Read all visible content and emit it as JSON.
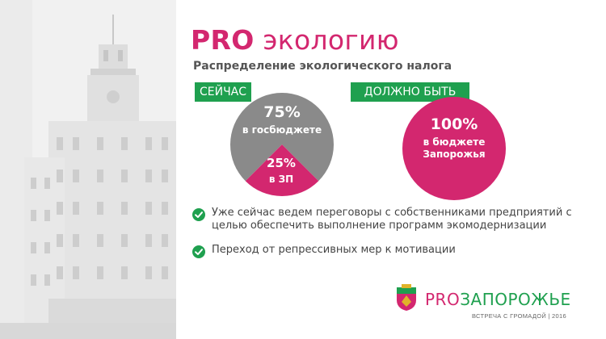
{
  "title": {
    "pro": "PRO",
    "rest": " экологию"
  },
  "subtitle": "Распределение экологического налога",
  "tags": {
    "now": "СЕЙЧАС",
    "should": "ДОЛЖНО БЫТЬ"
  },
  "now_pie": {
    "big_percent": "75%",
    "big_desc": "в госбюджете",
    "small_percent": "25%",
    "small_desc": "в ЗП",
    "shares": [
      75,
      25
    ]
  },
  "should_pie": {
    "percent": "100%",
    "desc_line1": "в бюджете",
    "desc_line2": "Запорожья",
    "share": 100
  },
  "bullets": [
    "Уже сейчас ведем переговоры с собственниками предприятий с целью обеспечить выполнение программ экомодернизации",
    "Переход от репрессивных мер к мотивации"
  ],
  "logo": {
    "pro": "PRO",
    "city": "ЗАПОРОЖЬЕ",
    "subtitle": "ВСТРЕЧА С ГРОМАДОЙ | 2016"
  },
  "colors": {
    "pink": "#d3276f",
    "green": "#1fa04f",
    "gray": "#8a8a8a"
  },
  "icons": {
    "bullet": "check-circle-icon"
  }
}
